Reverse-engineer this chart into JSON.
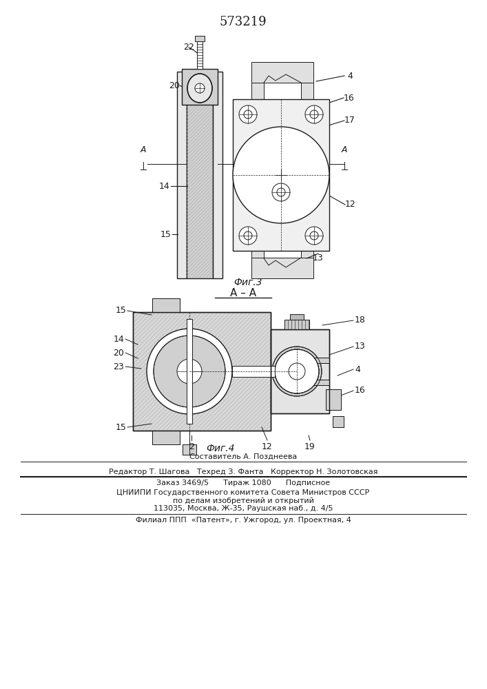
{
  "title": "573219",
  "fig3_caption": "Фиг.3",
  "fig4_caption": "Фиг.4",
  "section_label": "A – A",
  "footer_line0": "Составитель А. Позднеева",
  "footer_line1": "Редактор Т. Шагова   Техред З. Фанта   Корректор Н. Золотовская",
  "footer_line2": "Заказ 3469/5      Тираж 1080      Подписное",
  "footer_line3": "ЦНИИПИ Государственного комитета Совета Министров СССР",
  "footer_line4": "по делам изобретений и открытий",
  "footer_line5": "113035, Москва, Ж-35, Раушская наб., д. 4/5",
  "footer_line6": "Филиал ППП  «Патент», г. Ужгород, ул. Проектная, 4",
  "bg_color": "#ffffff",
  "dc": "#1a1a1a",
  "hatch_color": "#888888",
  "light_gray": "#d8d8d8",
  "mid_gray": "#c0c0c0",
  "white": "#ffffff"
}
